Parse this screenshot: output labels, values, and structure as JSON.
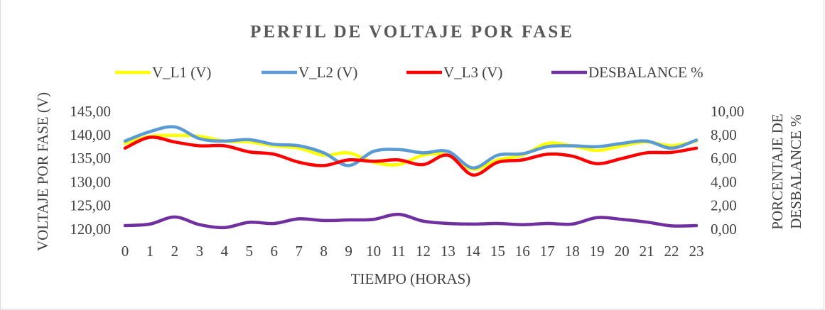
{
  "chart_data": {
    "type": "line",
    "title": "PERFIL DE VOLTAJE POR FASE",
    "x_label": "TIEMPO (HORAS)",
    "y_label": "VOLTAJE  POR FASE (V)",
    "y2_label": [
      "PORCENTAJE DE",
      "DESBALANCE %"
    ],
    "categories": [
      "0",
      "1",
      "2",
      "3",
      "4",
      "5",
      "6",
      "7",
      "8",
      "9",
      "10",
      "11",
      "12",
      "13",
      "14",
      "15",
      "16",
      "17",
      "18",
      "19",
      "20",
      "21",
      "22",
      "23"
    ],
    "ylim": [
      120,
      145
    ],
    "yticks": [
      {
        "value": 120,
        "label": "120,00"
      },
      {
        "value": 125,
        "label": "125,00"
      },
      {
        "value": 130,
        "label": "130,00"
      },
      {
        "value": 135,
        "label": "135,00"
      },
      {
        "value": 140,
        "label": "140,00"
      },
      {
        "value": 145,
        "label": "145,00"
      }
    ],
    "y2lim": [
      0,
      10
    ],
    "y2ticks": [
      {
        "value": 0,
        "label": "0,00"
      },
      {
        "value": 2,
        "label": "2,00"
      },
      {
        "value": 4,
        "label": "4,00"
      },
      {
        "value": 6,
        "label": "6,00"
      },
      {
        "value": 8,
        "label": "8,00"
      },
      {
        "value": 10,
        "label": "10,00"
      }
    ],
    "legend": "top",
    "series": [
      {
        "name": "V_L1 (V)",
        "color": "#ffff00",
        "values": [
          138.5,
          140,
          140.2,
          140,
          139,
          138.8,
          138,
          137.5,
          136,
          136.5,
          134.5,
          134,
          136,
          136,
          133,
          135,
          136,
          138.5,
          138,
          137,
          138,
          138.8,
          138,
          139
        ]
      },
      {
        "name": "V_L2 (V)",
        "color": "#5b9bd5",
        "values": [
          139,
          141,
          142,
          139.5,
          139,
          139.3,
          138.3,
          138,
          136.5,
          133.8,
          136.8,
          137.2,
          136.5,
          136.8,
          133.3,
          136,
          136.3,
          137.8,
          138,
          137.8,
          138.5,
          139,
          137.5,
          139.2
        ]
      },
      {
        "name": "V_L3 (V)",
        "color": "#ff0000",
        "values": [
          137.5,
          139.8,
          138.8,
          138,
          138,
          136.7,
          136.2,
          134.5,
          133.8,
          135,
          134.7,
          135,
          134,
          136,
          131.8,
          134.5,
          135,
          136.2,
          135.8,
          134.2,
          135.3,
          136.5,
          136.6,
          137.5
        ]
      },
      {
        "name": "DESBALANCE %",
        "color": "#7030a0",
        "axis": "y2",
        "values": [
          0.42,
          0.55,
          1.15,
          0.5,
          0.25,
          0.7,
          0.6,
          1.0,
          0.85,
          0.9,
          0.95,
          1.38,
          0.8,
          0.6,
          0.55,
          0.6,
          0.5,
          0.6,
          0.55,
          1.1,
          0.95,
          0.72,
          0.4,
          0.42
        ]
      }
    ]
  }
}
